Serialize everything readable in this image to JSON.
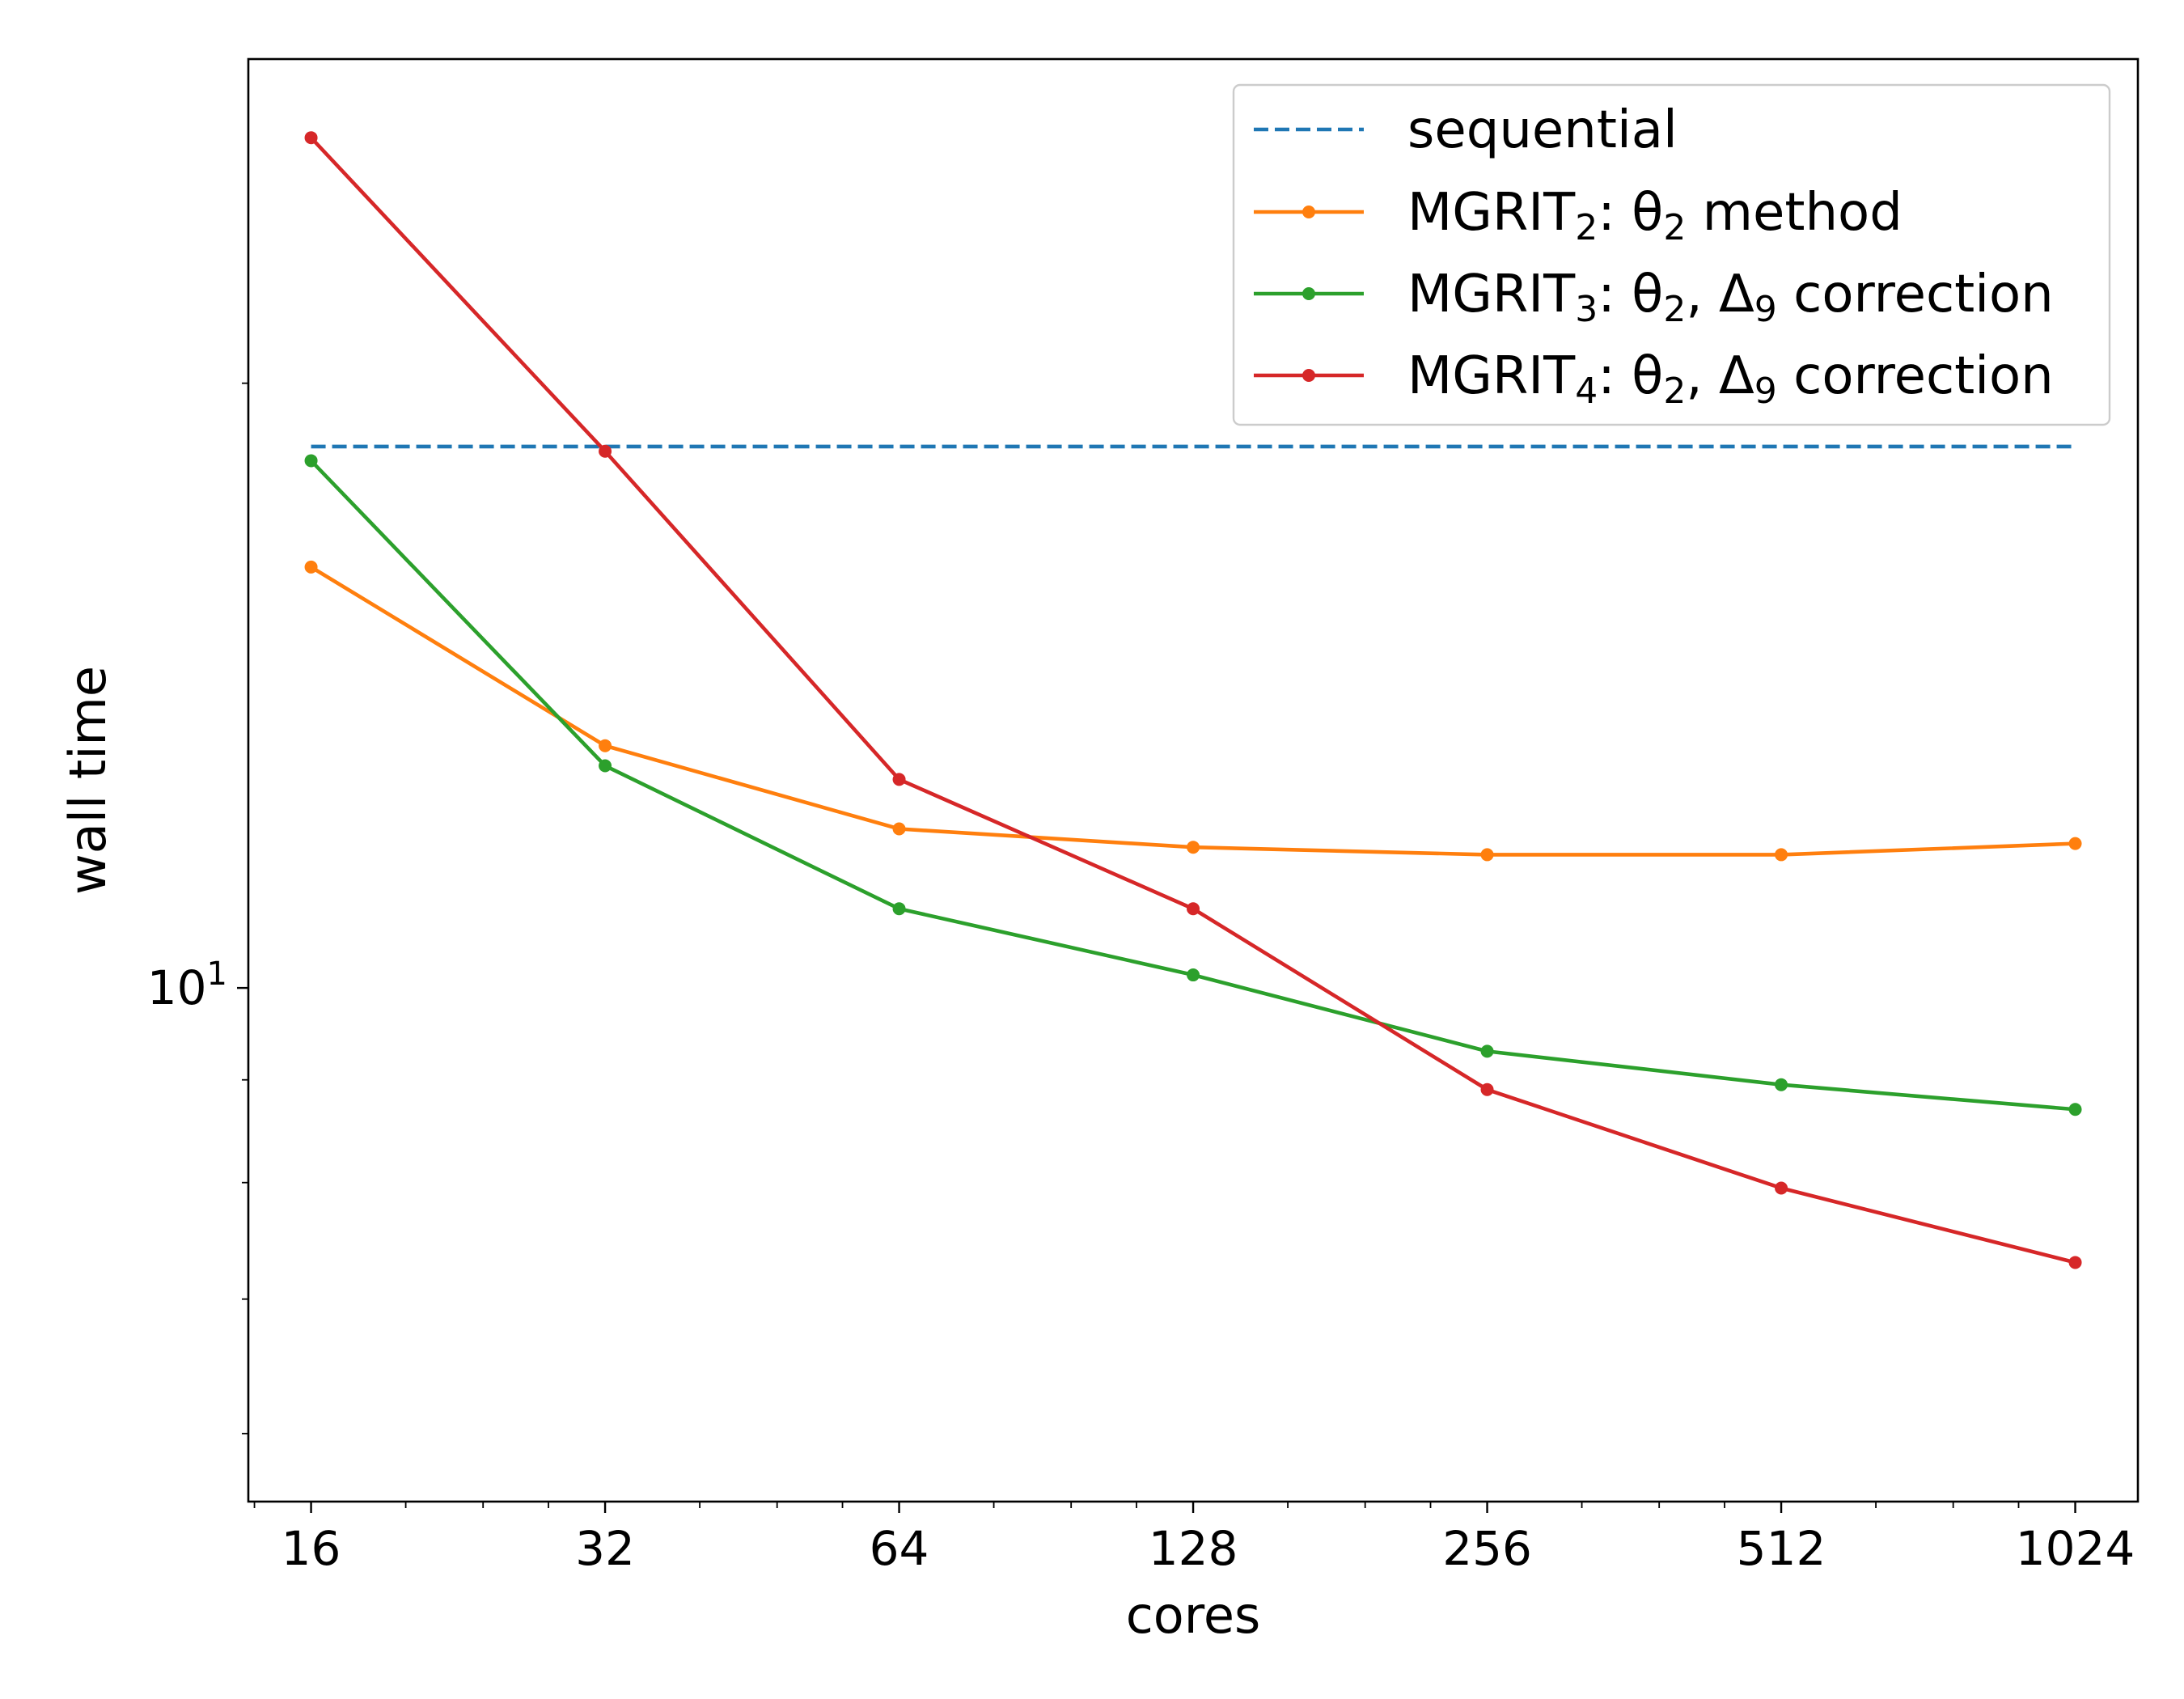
{
  "chart_data": {
    "type": "line",
    "xlabel": "cores",
    "ylabel": "wall time",
    "x_scale": "log2",
    "y_scale": "log10",
    "x": [
      16,
      32,
      64,
      128,
      256,
      512,
      1024
    ],
    "x_tick_labels": [
      "16",
      "32",
      "64",
      "128",
      "256",
      "512",
      "1024"
    ],
    "y_tick_label_base": "10",
    "y_tick_label_exp": "1",
    "ylim": [
      5.55,
      29.0
    ],
    "xlim": [
      13.8,
      1187
    ],
    "grid": false,
    "legend_position": "top-right",
    "series": [
      {
        "name": "sequential",
        "color": "#1f77b4",
        "style": "dashed",
        "markers": false,
        "values": [
          18.6,
          18.6,
          18.6,
          18.6,
          18.6,
          18.6,
          18.6
        ]
      },
      {
        "name": "MGRIT2: θ2 method",
        "color": "#ff7f0e",
        "style": "solid",
        "markers": true,
        "values": [
          16.2,
          13.2,
          12.0,
          11.75,
          11.65,
          11.65,
          11.8
        ]
      },
      {
        "name": "MGRIT3: θ2, Δ9 correction",
        "color": "#2ca02c",
        "style": "solid",
        "markers": true,
        "values": [
          18.3,
          12.9,
          10.95,
          10.15,
          9.3,
          8.95,
          8.7
        ]
      },
      {
        "name": "MGRIT4: θ2, Δ9 correction",
        "color": "#d62728",
        "style": "solid",
        "markers": true,
        "values": [
          26.5,
          18.5,
          12.7,
          10.95,
          8.9,
          7.95,
          7.3
        ]
      }
    ]
  },
  "legend": {
    "entries": [
      {
        "main": "sequential",
        "sub1": "",
        "mid": "",
        "sub2": "",
        "mid2": "",
        "sub3": "",
        "tail": ""
      },
      {
        "main": "MGRIT",
        "sub1": "2",
        "mid": ": θ",
        "sub2": "2",
        "mid2": " method",
        "sub3": "",
        "tail": ""
      },
      {
        "main": "MGRIT",
        "sub1": "3",
        "mid": ": θ",
        "sub2": "2",
        "mid2": ", Δ",
        "sub3": "9",
        "tail": " correction"
      },
      {
        "main": "MGRIT",
        "sub1": "4",
        "mid": ": θ",
        "sub2": "2",
        "mid2": ", Δ",
        "sub3": "9",
        "tail": " correction"
      }
    ]
  }
}
